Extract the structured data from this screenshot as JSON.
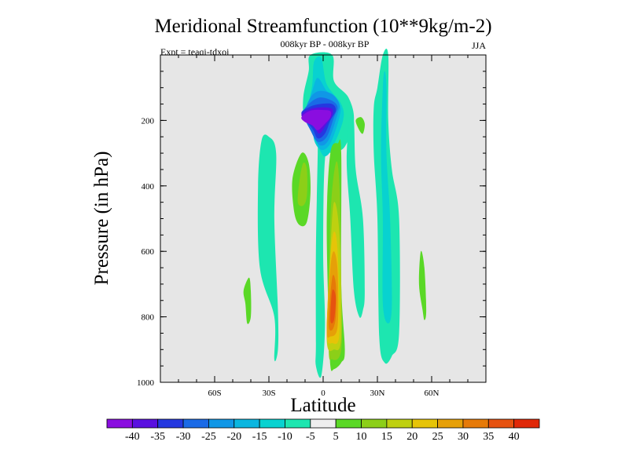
{
  "chart_data": {
    "type": "contour",
    "title": "Meridional Streamfunction (10**9kg/m-2)",
    "subtitle": "008kyr BP - 008kyr BP",
    "left_label": "Expt = teaqi-tdxoi",
    "right_label": "JJA",
    "xlabel": "Latitude",
    "ylabel": "Pressure (in hPa)",
    "xlim": [
      -90,
      90
    ],
    "ylim": [
      1000,
      0
    ],
    "x_ticks": [
      {
        "value": -60,
        "label": "60S"
      },
      {
        "value": -30,
        "label": "30S"
      },
      {
        "value": 0,
        "label": "0"
      },
      {
        "value": 30,
        "label": "30N"
      },
      {
        "value": 60,
        "label": "60N"
      }
    ],
    "y_ticks": [
      {
        "value": 200,
        "label": "200"
      },
      {
        "value": 400,
        "label": "400"
      },
      {
        "value": 600,
        "label": "600"
      },
      {
        "value": 800,
        "label": "800"
      },
      {
        "value": 1000,
        "label": "1000"
      }
    ],
    "background_color": "#e6e6e6",
    "colorbar": {
      "labels": [
        "-40",
        "-35",
        "-30",
        "-25",
        "-20",
        "-15",
        "-10",
        "-5",
        "5",
        "10",
        "15",
        "20",
        "25",
        "30",
        "35",
        "40"
      ],
      "colors": [
        "#8a0ee0",
        "#5a10e0",
        "#2438e0",
        "#1a6ae6",
        "#1097e6",
        "#0ab6e0",
        "#08d2d0",
        "#1de6b0",
        "#eeeeee",
        "#5ad826",
        "#8ccf18",
        "#bfd010",
        "#e6c408",
        "#e6a008",
        "#e67a08",
        "#e65210",
        "#e02808"
      ]
    },
    "regions": [
      {
        "name": "tropical-negative-outer",
        "level": -5,
        "points": [
          [
            -4,
            880
          ],
          [
            -4,
            600
          ],
          [
            -3,
            300
          ],
          [
            -3,
            230
          ],
          [
            -10,
            200
          ],
          [
            -11,
            130
          ],
          [
            -8,
            50
          ],
          [
            -7,
            0
          ],
          [
            5,
            0
          ],
          [
            6,
            80
          ],
          [
            14,
            130
          ],
          [
            17,
            200
          ],
          [
            12,
            280
          ],
          [
            5,
            300
          ],
          [
            1,
            320
          ],
          [
            0,
            600
          ],
          [
            1,
            830
          ],
          [
            -1,
            980
          ],
          [
            -4,
            950
          ]
        ]
      },
      {
        "name": "tropical-negative-core-10",
        "level": -10,
        "points": [
          [
            -6,
            210
          ],
          [
            -8,
            160
          ],
          [
            -6,
            90
          ],
          [
            -5,
            20
          ],
          [
            -1,
            10
          ],
          [
            2,
            90
          ],
          [
            10,
            150
          ],
          [
            11,
            200
          ],
          [
            5,
            285
          ],
          [
            1,
            310
          ],
          [
            -2,
            290
          ],
          [
            -5,
            260
          ]
        ]
      },
      {
        "name": "tropical-negative-core-15",
        "level": -15,
        "points": [
          [
            -7,
            200
          ],
          [
            -9,
            170
          ],
          [
            -6,
            110
          ],
          [
            -3,
            70
          ],
          [
            2,
            110
          ],
          [
            9,
            150
          ],
          [
            9,
            190
          ],
          [
            4,
            270
          ],
          [
            -1,
            290
          ],
          [
            -4,
            260
          ]
        ]
      },
      {
        "name": "tropical-negative-core-20",
        "level": -20,
        "points": [
          [
            -10,
            180
          ],
          [
            -7,
            130
          ],
          [
            -2,
            110
          ],
          [
            5,
            120
          ],
          [
            9,
            150
          ],
          [
            8,
            180
          ],
          [
            3,
            260
          ],
          [
            -2,
            275
          ],
          [
            -7,
            230
          ]
        ]
      },
      {
        "name": "tropical-negative-core-25",
        "level": -25,
        "points": [
          [
            -11,
            180
          ],
          [
            -8,
            150
          ],
          [
            -2,
            130
          ],
          [
            5,
            140
          ],
          [
            8,
            160
          ],
          [
            6,
            190
          ],
          [
            2,
            250
          ],
          [
            -3,
            265
          ],
          [
            -7,
            230
          ]
        ]
      },
      {
        "name": "tropical-negative-core-30",
        "level": -30,
        "points": [
          [
            -12,
            180
          ],
          [
            -8,
            160
          ],
          [
            -2,
            150
          ],
          [
            5,
            150
          ],
          [
            7,
            170
          ],
          [
            4,
            200
          ],
          [
            1,
            240
          ],
          [
            -3,
            255
          ],
          [
            -6,
            225
          ]
        ]
      },
      {
        "name": "tropical-negative-core-35",
        "level": -35,
        "points": [
          [
            -12,
            185
          ],
          [
            -7,
            165
          ],
          [
            0,
            160
          ],
          [
            5,
            165
          ],
          [
            5,
            185
          ],
          [
            2,
            210
          ],
          [
            -2,
            240
          ],
          [
            -5,
            220
          ]
        ]
      },
      {
        "name": "tropical-negative-core-40",
        "level": -40,
        "points": [
          [
            -12,
            190
          ],
          [
            -7,
            170
          ],
          [
            0,
            168
          ],
          [
            4,
            172
          ],
          [
            4,
            190
          ],
          [
            1,
            210
          ],
          [
            -3,
            230
          ],
          [
            -6,
            215
          ],
          [
            -10,
            205
          ]
        ]
      },
      {
        "name": "tropical-positive-belt-5",
        "level": 5,
        "points": [
          [
            4,
            950
          ],
          [
            3,
            800
          ],
          [
            2,
            500
          ],
          [
            4,
            300
          ],
          [
            8,
            270
          ],
          [
            10,
            300
          ],
          [
            10,
            700
          ],
          [
            12,
            900
          ],
          [
            10,
            940
          ],
          [
            6,
            960
          ]
        ]
      },
      {
        "name": "tropical-positive-belt-10",
        "level": 10,
        "points": [
          [
            3,
            880
          ],
          [
            4,
            500
          ],
          [
            7,
            330
          ],
          [
            9,
            400
          ],
          [
            10,
            700
          ],
          [
            10,
            900
          ],
          [
            5,
            930
          ]
        ]
      },
      {
        "name": "tropical-positive-belt-15",
        "level": 15,
        "points": [
          [
            2,
            870
          ],
          [
            4,
            600
          ],
          [
            6,
            450
          ],
          [
            9,
            550
          ],
          [
            10,
            860
          ],
          [
            6,
            900
          ]
        ]
      },
      {
        "name": "tropical-positive-belt-20",
        "level": 20,
        "points": [
          [
            2,
            850
          ],
          [
            4,
            620
          ],
          [
            6,
            540
          ],
          [
            8,
            600
          ],
          [
            9,
            850
          ],
          [
            5,
            880
          ]
        ]
      },
      {
        "name": "tropical-positive-belt-25",
        "level": 25,
        "points": [
          [
            2,
            840
          ],
          [
            4,
            650
          ],
          [
            6,
            600
          ],
          [
            8,
            660
          ],
          [
            8,
            830
          ],
          [
            4,
            860
          ]
        ]
      },
      {
        "name": "tropical-positive-belt-30",
        "level": 30,
        "points": [
          [
            3,
            820
          ],
          [
            5,
            680
          ],
          [
            7,
            700
          ],
          [
            7,
            800
          ],
          [
            5,
            840
          ]
        ]
      },
      {
        "name": "tropical-positive-belt-35",
        "level": 35,
        "points": [
          [
            4,
            810
          ],
          [
            5,
            720
          ],
          [
            7,
            740
          ],
          [
            6,
            810
          ]
        ]
      },
      {
        "name": "south-subtropic-positive-5",
        "level": 5,
        "points": [
          [
            -16,
            480
          ],
          [
            -17,
            380
          ],
          [
            -12,
            300
          ],
          [
            -8,
            330
          ],
          [
            -7,
            420
          ],
          [
            -9,
            510
          ],
          [
            -13,
            520
          ]
        ]
      },
      {
        "name": "south-subtropic-positive-10",
        "level": 10,
        "points": [
          [
            -14,
            450
          ],
          [
            -13,
            380
          ],
          [
            -11,
            330
          ],
          [
            -9,
            350
          ],
          [
            -9,
            430
          ],
          [
            -11,
            460
          ]
        ]
      },
      {
        "name": "south-midlat-negative",
        "level": -5,
        "points": [
          [
            -27,
            800
          ],
          [
            -35,
            650
          ],
          [
            -36,
            400
          ],
          [
            -34,
            260
          ],
          [
            -30,
            250
          ],
          [
            -26,
            300
          ],
          [
            -27,
            500
          ],
          [
            -25,
            780
          ],
          [
            -25,
            900
          ],
          [
            -27,
            930
          ]
        ]
      },
      {
        "name": "south-highlat-positive",
        "level": 5,
        "points": [
          [
            -43,
            760
          ],
          [
            -44,
            720
          ],
          [
            -41,
            680
          ],
          [
            -40,
            720
          ],
          [
            -40,
            800
          ],
          [
            -42,
            820
          ]
        ]
      },
      {
        "name": "north-tropical-negative",
        "level": -5,
        "points": [
          [
            17,
            720
          ],
          [
            15,
            500
          ],
          [
            13,
            320
          ],
          [
            15,
            180
          ],
          [
            17,
            200
          ],
          [
            18,
            350
          ],
          [
            22,
            500
          ],
          [
            23,
            720
          ],
          [
            22,
            780
          ],
          [
            20,
            800
          ]
        ]
      },
      {
        "name": "north-subtropic-negative",
        "level": -5,
        "points": [
          [
            31,
            860
          ],
          [
            30,
            500
          ],
          [
            28,
            300
          ],
          [
            28,
            160
          ],
          [
            30,
            100
          ],
          [
            33,
            0
          ],
          [
            36,
            0
          ],
          [
            36,
            200
          ],
          [
            38,
            350
          ],
          [
            42,
            500
          ],
          [
            42,
            850
          ],
          [
            38,
            920
          ],
          [
            34,
            940
          ]
        ]
      },
      {
        "name": "north-subtropic-negative-10",
        "level": -10,
        "points": [
          [
            33,
            760
          ],
          [
            33,
            500
          ],
          [
            32,
            300
          ],
          [
            33,
            100
          ],
          [
            34,
            50
          ],
          [
            35,
            100
          ],
          [
            35,
            300
          ],
          [
            37,
            500
          ],
          [
            38,
            760
          ],
          [
            36,
            820
          ]
        ]
      },
      {
        "name": "north-upper-positive",
        "level": 5,
        "points": [
          [
            20,
            230
          ],
          [
            18,
            200
          ],
          [
            21,
            190
          ],
          [
            23,
            210
          ],
          [
            22,
            240
          ]
        ]
      },
      {
        "name": "north-midlat-positive",
        "level": 5,
        "points": [
          [
            55,
            780
          ],
          [
            53,
            700
          ],
          [
            54,
            600
          ],
          [
            56,
            650
          ],
          [
            57,
            780
          ],
          [
            56,
            810
          ]
        ]
      }
    ]
  }
}
